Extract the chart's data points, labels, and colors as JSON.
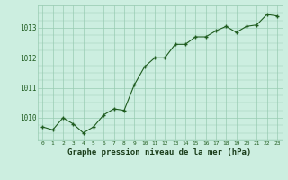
{
  "x": [
    0,
    1,
    2,
    3,
    4,
    5,
    6,
    7,
    8,
    9,
    10,
    11,
    12,
    13,
    14,
    15,
    16,
    17,
    18,
    19,
    20,
    21,
    22,
    23
  ],
  "y": [
    1009.7,
    1009.6,
    1010.0,
    1009.8,
    1009.5,
    1009.7,
    1010.1,
    1010.3,
    1010.25,
    1011.1,
    1011.7,
    1012.0,
    1012.0,
    1012.45,
    1012.45,
    1012.7,
    1012.7,
    1012.9,
    1013.05,
    1012.85,
    1013.05,
    1013.1,
    1013.45,
    1013.4
  ],
  "line_color": "#1f5c1f",
  "marker_color": "#1f5c1f",
  "bg_color": "#cceee0",
  "grid_color": "#99ccb3",
  "xlabel": "Graphe pression niveau de la mer (hPa)",
  "xlabel_color": "#1a3d1a",
  "tick_label_color": "#1f5c1f",
  "ylim": [
    1009.25,
    1013.75
  ],
  "yticks": [
    1010,
    1011,
    1012,
    1013
  ],
  "xlim": [
    -0.5,
    23.5
  ],
  "xticks": [
    0,
    1,
    2,
    3,
    4,
    5,
    6,
    7,
    8,
    9,
    10,
    11,
    12,
    13,
    14,
    15,
    16,
    17,
    18,
    19,
    20,
    21,
    22,
    23
  ]
}
